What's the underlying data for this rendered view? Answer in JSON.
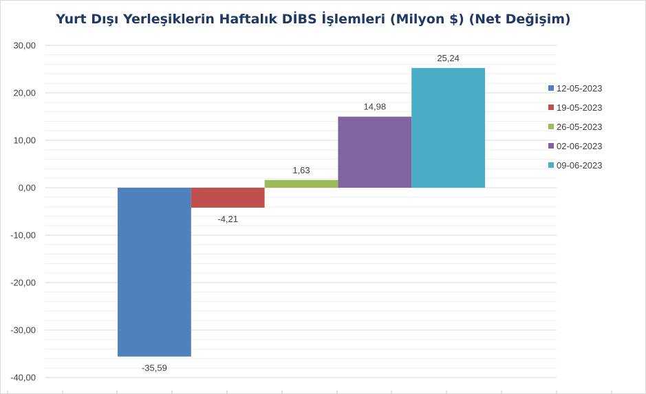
{
  "chart_data": {
    "type": "bar",
    "title": "Yurt Dışı Yerleşiklerin Haftalık DİBS İşlemleri (Milyon $) (Net Değişim)",
    "xlabel": "",
    "ylabel": "",
    "ylim": [
      -40,
      30
    ],
    "y_ticks": [
      "30,00",
      "20,00",
      "10,00",
      "0,00",
      "-10,00",
      "-20,00",
      "-30,00",
      "-40,00"
    ],
    "grid": true,
    "legend_position": "right",
    "series": [
      {
        "name": "12-05-2023",
        "value": -35.59,
        "label": "-35,59",
        "color": "#4f81bd"
      },
      {
        "name": "19-05-2023",
        "value": -4.21,
        "label": "-4,21",
        "color": "#c0504d"
      },
      {
        "name": "26-05-2023",
        "value": 1.63,
        "label": "1,63",
        "color": "#9bbb59"
      },
      {
        "name": "02-06-2023",
        "value": 14.98,
        "label": "14,98",
        "color": "#8064a2"
      },
      {
        "name": "09-06-2023",
        "value": 25.24,
        "label": "25,24",
        "color": "#4bacc6"
      }
    ]
  }
}
